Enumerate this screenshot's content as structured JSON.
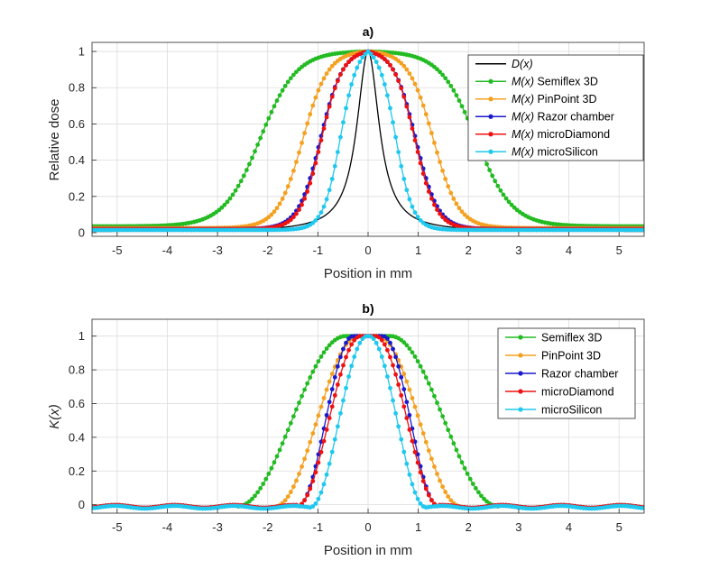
{
  "chart_data": [
    {
      "type": "line",
      "title": "a)",
      "xlabel": "Position in mm",
      "ylabel": "Relative dose",
      "xlim": [
        -5.5,
        5.5
      ],
      "ylim": [
        -0.02,
        1.05
      ],
      "xticks": [
        -5,
        -4,
        -3,
        -2,
        -1,
        0,
        1,
        2,
        3,
        4,
        5
      ],
      "yticks": [
        0,
        0.2,
        0.4,
        0.6,
        0.8,
        1
      ],
      "grid": true,
      "legend_position": "top-right",
      "series": [
        {
          "name": "D(x)",
          "name_italic": "D(x)",
          "name_rest": "",
          "color": "#000000",
          "markers": false,
          "profile": {
            "kind": "lorentz",
            "w": 0.27,
            "base": 0.005
          }
        },
        {
          "name": "M(x) Semiflex 3D",
          "name_italic": "M(x)",
          "name_rest": " Semiflex 3D",
          "color": "#22bb22",
          "markers": true,
          "profile": {
            "kind": "fermi",
            "half": 2.15,
            "a": 0.36,
            "base": 0.035
          }
        },
        {
          "name": "M(x) PinPoint 3D",
          "name_italic": "M(x)",
          "name_rest": " PinPoint 3D",
          "color": "#f4a020",
          "markers": true,
          "profile": {
            "kind": "fermi",
            "half": 1.3,
            "a": 0.25,
            "base": 0.025
          }
        },
        {
          "name": "M(x) Razor chamber",
          "name_italic": "M(x)",
          "name_rest": " Razor chamber",
          "color": "#1a1acd",
          "markers": true,
          "profile": {
            "kind": "fermi",
            "half": 0.95,
            "a": 0.22,
            "base": 0.02
          }
        },
        {
          "name": "M(x) microDiamond",
          "name_italic": "M(x)",
          "name_rest": " microDiamond",
          "color": "#ee1111",
          "markers": true,
          "profile": {
            "kind": "fermi",
            "half": 0.93,
            "a": 0.21,
            "base": 0.02
          }
        },
        {
          "name": "M(x) microSilicon",
          "name_italic": "M(x)",
          "name_rest": " microSilicon",
          "color": "#1ec8ee",
          "markers": true,
          "profile": {
            "kind": "fermi",
            "half": 0.55,
            "a": 0.17,
            "base": 0.015
          }
        }
      ]
    },
    {
      "type": "line",
      "title": "b)",
      "xlabel": "Position in mm",
      "ylabel": "K(x)",
      "xlim": [
        -5.5,
        5.5
      ],
      "ylim": [
        -0.05,
        1.1
      ],
      "xticks": [
        -5,
        -4,
        -3,
        -2,
        -1,
        0,
        1,
        2,
        3,
        4,
        5
      ],
      "yticks": [
        0,
        0.2,
        0.4,
        0.6,
        0.8,
        1
      ],
      "grid": true,
      "legend_position": "top-right",
      "series": [
        {
          "name": "Semiflex 3D",
          "color": "#22bb22",
          "markers": true,
          "profile": {
            "kind": "kernel",
            "flat": 0.45,
            "edge": 2.6,
            "base": -0.01
          }
        },
        {
          "name": "PinPoint 3D",
          "color": "#f4a020",
          "markers": true,
          "profile": {
            "kind": "kernel",
            "flat": 0.2,
            "edge": 1.85,
            "base": -0.01
          }
        },
        {
          "name": "Razor chamber",
          "color": "#1a1acd",
          "markers": true,
          "profile": {
            "kind": "kernel",
            "flat": 0.3,
            "edge": 1.4,
            "base": -0.01
          }
        },
        {
          "name": "microDiamond",
          "color": "#ee1111",
          "markers": true,
          "profile": {
            "kind": "kernel",
            "flat": 0.15,
            "edge": 1.42,
            "base": -0.01
          }
        },
        {
          "name": "microSilicon",
          "color": "#1ec8ee",
          "markers": true,
          "profile": {
            "kind": "kernel",
            "flat": 0.02,
            "edge": 1.15,
            "base": -0.015
          }
        }
      ]
    }
  ]
}
